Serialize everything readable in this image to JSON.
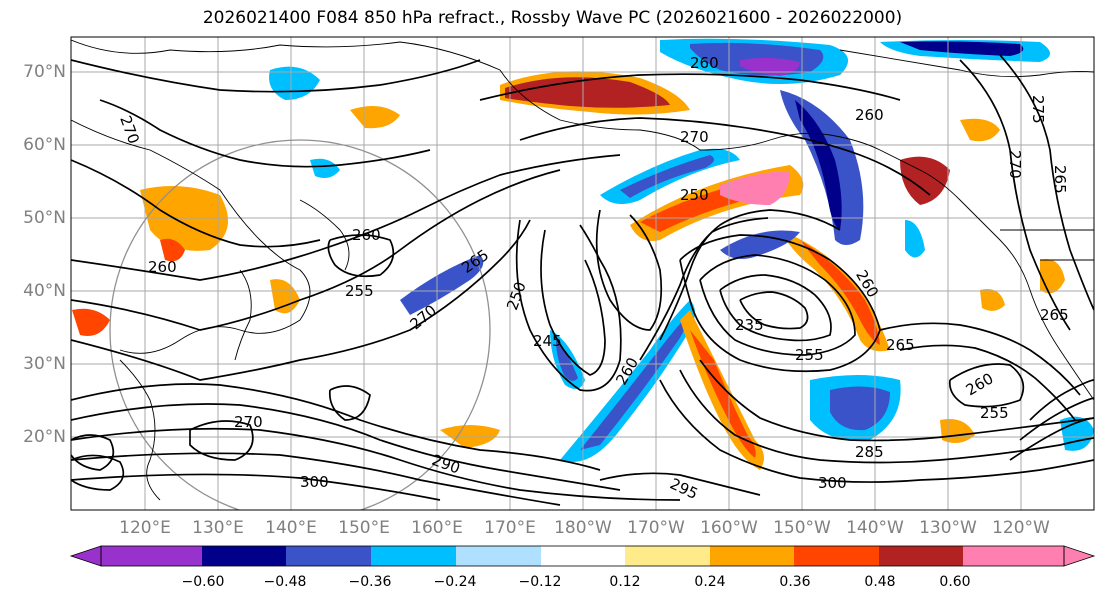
{
  "title": "2026021400 F084 850 hPa refract., Rossby Wave PC (2026021600 - 2026022000)",
  "lat_labels": [
    "70°N",
    "60°N",
    "50°N",
    "40°N",
    "30°N",
    "20°N"
  ],
  "lon_labels": [
    "120°E",
    "130°E",
    "140°E",
    "150°E",
    "160°E",
    "170°E",
    "180°W",
    "170°W",
    "160°W",
    "150°W",
    "140°W",
    "130°W",
    "120°W"
  ],
  "contour_labels": [
    "270",
    "260",
    "255",
    "260",
    "265",
    "270",
    "250",
    "245",
    "260",
    "235",
    "255",
    "260",
    "265",
    "270",
    "265",
    "275",
    "260",
    "270",
    "285",
    "295",
    "300",
    "300",
    "290",
    "270",
    "260",
    "255",
    "250",
    "265",
    "260"
  ],
  "colorbar": {
    "tick_labels": [
      "−0.60",
      "−0.48",
      "−0.36",
      "−0.24",
      "−0.12",
      "0.12",
      "0.24",
      "0.36",
      "0.48",
      "0.60"
    ],
    "colors": [
      "#9932cc",
      "#00008b",
      "#3a53c9",
      "#00bfff",
      "#b0e0ff",
      "#ffffff",
      "#ffeb8a",
      "#ffa500",
      "#ff4500",
      "#b22222",
      "#ff80b0"
    ]
  }
}
